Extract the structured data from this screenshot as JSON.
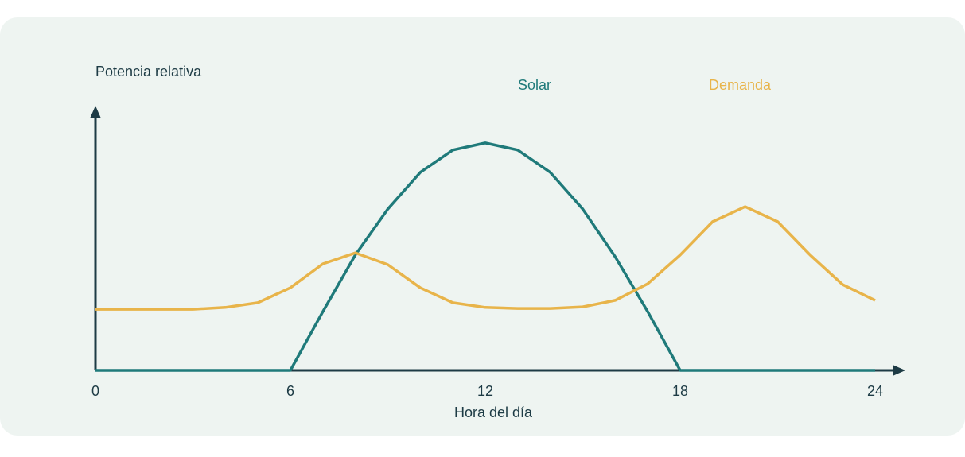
{
  "chart_data": {
    "type": "line",
    "y_label": "Potencia relativa",
    "x_label": "Hora del día",
    "x": [
      0,
      1,
      2,
      3,
      4,
      5,
      6,
      7,
      8,
      9,
      10,
      11,
      12,
      13,
      14,
      15,
      16,
      17,
      18,
      19,
      20,
      21,
      22,
      23,
      24
    ],
    "xlim": [
      0,
      24
    ],
    "xticks": [
      0,
      6,
      12,
      18,
      24
    ],
    "ylim": [
      0,
      1
    ],
    "series": [
      {
        "name": "Solar",
        "color": "#1f7a7a",
        "values": [
          0,
          0,
          0,
          0,
          0,
          0,
          0,
          0.224,
          0.44,
          0.615,
          0.755,
          0.84,
          0.867,
          0.84,
          0.755,
          0.615,
          0.433,
          0.224,
          0,
          0,
          0,
          0,
          0,
          0,
          0
        ]
      },
      {
        "name": "Demanda",
        "color": "#e8b44a",
        "values": [
          0.233,
          0.233,
          0.233,
          0.233,
          0.24,
          0.258,
          0.315,
          0.406,
          0.448,
          0.403,
          0.315,
          0.258,
          0.24,
          0.236,
          0.236,
          0.242,
          0.267,
          0.33,
          0.44,
          0.567,
          0.624,
          0.567,
          0.44,
          0.327,
          0.267
        ]
      }
    ]
  }
}
